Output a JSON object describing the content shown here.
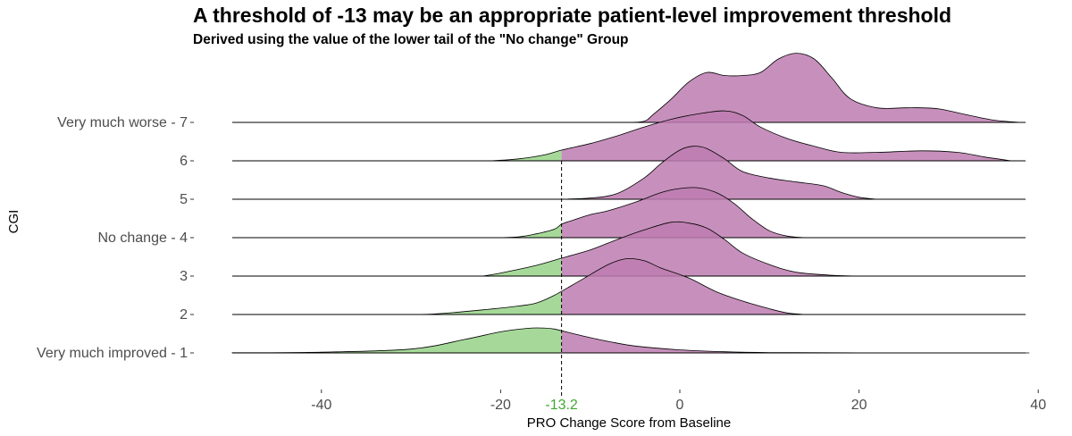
{
  "chart_data": {
    "type": "ridgeline",
    "title": "A threshold of  -13  may be an appropriate patient-level improvement threshold",
    "subtitle": "Derived using the value of the lower tail of the \"No change\" Group",
    "xlabel": "PRO Change Score from Baseline",
    "ylabel": "CGI",
    "xlim": [
      -50,
      39
    ],
    "x_ticks": [
      "-40",
      "-20",
      "0",
      "20",
      "40"
    ],
    "x_tick_values": [
      -40,
      -20,
      0,
      20,
      40
    ],
    "threshold": {
      "value": -13.2,
      "label": "-13.2",
      "color": "#41a731"
    },
    "colors": {
      "below_threshold": "#a1d793",
      "above_threshold": "#bd7db0",
      "overlap": "#9c3b8c",
      "line": "#000000"
    },
    "grid": false,
    "series": [
      {
        "name": "Very much improved - 1",
        "x_range": [
          -50,
          39
        ],
        "points": [
          [
            -50,
            0.005
          ],
          [
            -40,
            0.02
          ],
          [
            -30,
            0.1
          ],
          [
            -24,
            0.35
          ],
          [
            -20,
            0.55
          ],
          [
            -17,
            0.64
          ],
          [
            -15.5,
            0.65
          ],
          [
            -14,
            0.62
          ],
          [
            -11,
            0.45
          ],
          [
            -8,
            0.3
          ],
          [
            -5,
            0.18
          ],
          [
            0,
            0.08
          ],
          [
            5,
            0.03
          ],
          [
            10,
            0.01
          ],
          [
            20,
            0.003
          ],
          [
            39,
            0
          ]
        ]
      },
      {
        "name": "2",
        "x_range": [
          -50,
          39
        ],
        "points": [
          [
            -30,
            0
          ],
          [
            -27,
            0.02
          ],
          [
            -22,
            0.12
          ],
          [
            -18,
            0.22
          ],
          [
            -16,
            0.3
          ],
          [
            -14,
            0.5
          ],
          [
            -11,
            0.9
          ],
          [
            -8,
            1.3
          ],
          [
            -6,
            1.45
          ],
          [
            -4,
            1.4
          ],
          [
            -2,
            1.2
          ],
          [
            1,
            0.95
          ],
          [
            4,
            0.6
          ],
          [
            7,
            0.35
          ],
          [
            10,
            0.15
          ],
          [
            12,
            0.04
          ],
          [
            14,
            0
          ]
        ]
      },
      {
        "name": "3",
        "x_range": [
          -50,
          39
        ],
        "points": [
          [
            -22,
            0
          ],
          [
            -20,
            0.08
          ],
          [
            -16,
            0.28
          ],
          [
            -13,
            0.48
          ],
          [
            -10,
            0.68
          ],
          [
            -7,
            0.95
          ],
          [
            -4,
            1.2
          ],
          [
            -1,
            1.4
          ],
          [
            1,
            1.38
          ],
          [
            3,
            1.25
          ],
          [
            5,
            0.95
          ],
          [
            7,
            0.6
          ],
          [
            10,
            0.3
          ],
          [
            13,
            0.1
          ],
          [
            17,
            0.02
          ],
          [
            21,
            0
          ]
        ]
      },
      {
        "name": "No change - 4",
        "x_range": [
          -50,
          39
        ],
        "points": [
          [
            -21,
            0
          ],
          [
            -18,
            0.02
          ],
          [
            -16,
            0.1
          ],
          [
            -14,
            0.22
          ],
          [
            -13.2,
            0.35
          ],
          [
            -12,
            0.45
          ],
          [
            -10,
            0.6
          ],
          [
            -8,
            0.7
          ],
          [
            -5,
            0.92
          ],
          [
            -2,
            1.18
          ],
          [
            0,
            1.28
          ],
          [
            2,
            1.3
          ],
          [
            4,
            1.18
          ],
          [
            6,
            0.9
          ],
          [
            8,
            0.5
          ],
          [
            10,
            0.18
          ],
          [
            12,
            0.04
          ],
          [
            14,
            0
          ]
        ]
      },
      {
        "name": "5",
        "x_range": [
          -50,
          39
        ],
        "points": [
          [
            -14,
            0
          ],
          [
            -10,
            0.03
          ],
          [
            -7,
            0.15
          ],
          [
            -4,
            0.55
          ],
          [
            -2,
            0.95
          ],
          [
            0,
            1.28
          ],
          [
            1.5,
            1.38
          ],
          [
            3,
            1.32
          ],
          [
            5,
            1.05
          ],
          [
            7,
            0.72
          ],
          [
            10,
            0.55
          ],
          [
            13,
            0.45
          ],
          [
            16,
            0.35
          ],
          [
            18,
            0.18
          ],
          [
            20,
            0.05
          ],
          [
            22,
            0
          ]
        ]
      },
      {
        "name": "6",
        "x_range": [
          -50,
          39
        ],
        "points": [
          [
            -21,
            0
          ],
          [
            -18,
            0.05
          ],
          [
            -15,
            0.16
          ],
          [
            -13.2,
            0.28
          ],
          [
            -10,
            0.45
          ],
          [
            -7,
            0.65
          ],
          [
            -4,
            0.88
          ],
          [
            -1,
            1.08
          ],
          [
            2,
            1.22
          ],
          [
            5,
            1.3
          ],
          [
            7,
            1.18
          ],
          [
            9,
            0.88
          ],
          [
            12,
            0.58
          ],
          [
            15,
            0.38
          ],
          [
            18,
            0.22
          ],
          [
            22,
            0.22
          ],
          [
            27,
            0.26
          ],
          [
            31,
            0.22
          ],
          [
            34,
            0.1
          ],
          [
            37,
            0
          ]
        ]
      },
      {
        "name": "Very much worse - 7",
        "x_range": [
          -50,
          39
        ],
        "points": [
          [
            -6,
            0
          ],
          [
            -4,
            0.03
          ],
          [
            -3,
            0.2
          ],
          [
            -1,
            0.6
          ],
          [
            1,
            1.05
          ],
          [
            3,
            1.3
          ],
          [
            5,
            1.22
          ],
          [
            7,
            1.22
          ],
          [
            9,
            1.3
          ],
          [
            11,
            1.65
          ],
          [
            13,
            1.8
          ],
          [
            15,
            1.65
          ],
          [
            17,
            1.15
          ],
          [
            19,
            0.62
          ],
          [
            22,
            0.38
          ],
          [
            25,
            0.38
          ],
          [
            27,
            0.38
          ],
          [
            29,
            0.35
          ],
          [
            32,
            0.2
          ],
          [
            35,
            0.06
          ],
          [
            38,
            0
          ]
        ]
      }
    ]
  }
}
